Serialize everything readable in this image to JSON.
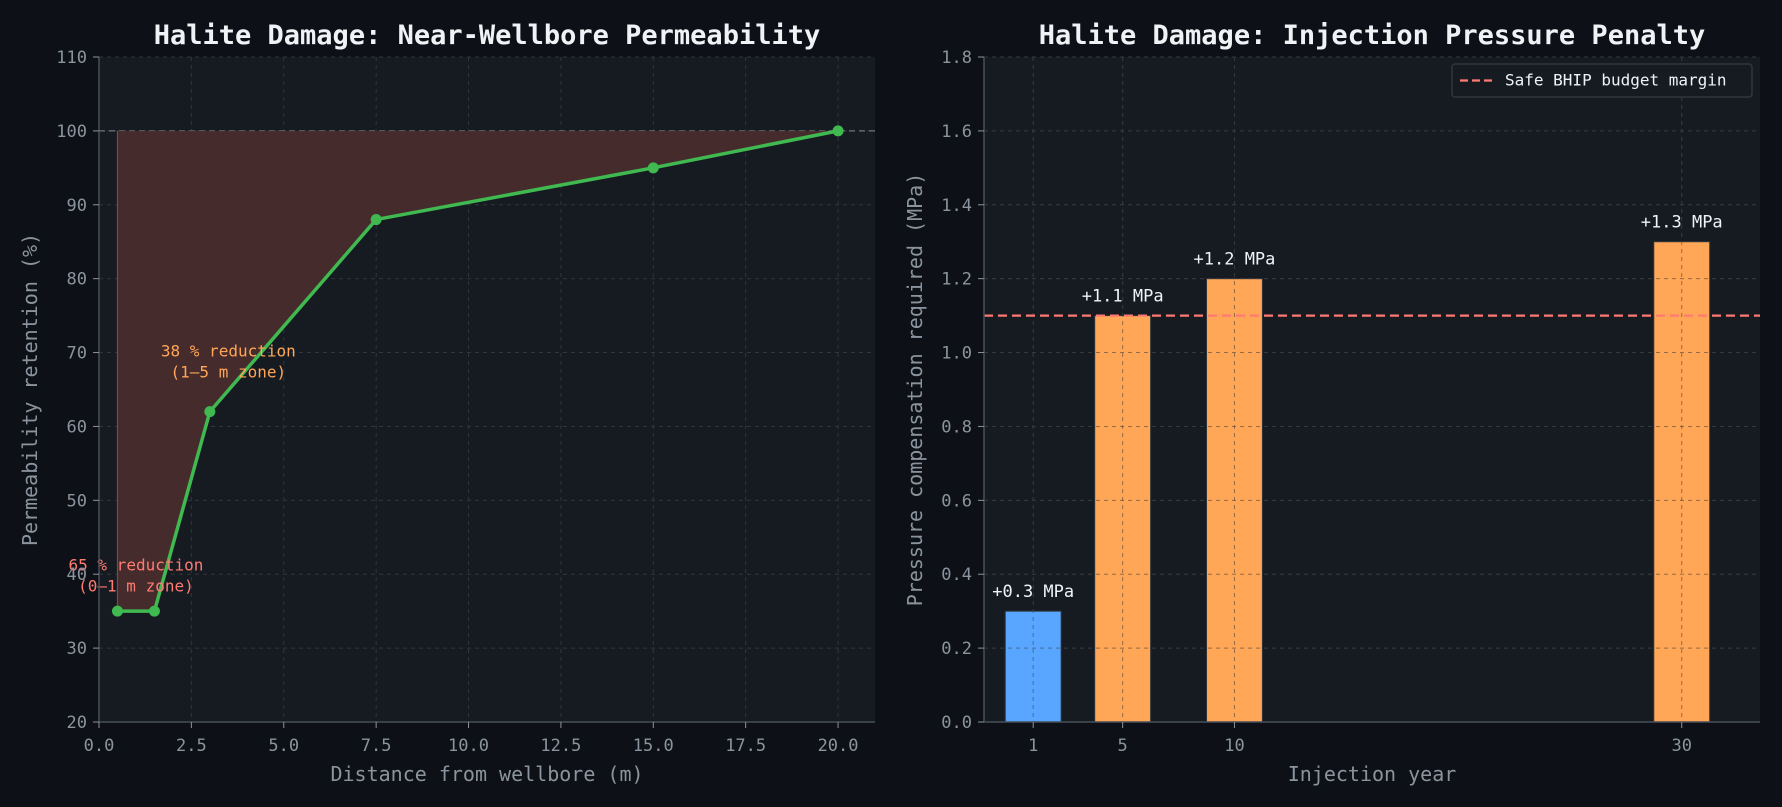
{
  "chart_data": [
    {
      "type": "line",
      "title": "Halite Damage: Near-Wellbore Permeability",
      "xlabel": "Distance from wellbore (m)",
      "ylabel": "Permeability retention (%)",
      "xlim": [
        0,
        21
      ],
      "ylim": [
        20,
        110
      ],
      "xticks": [
        0,
        2.5,
        5,
        7.5,
        10,
        12.5,
        15,
        17.5,
        20
      ],
      "xtick_labels": [
        "0.0",
        "2.5",
        "5.0",
        "7.5",
        "10.0",
        "12.5",
        "15.0",
        "17.5",
        "20.0"
      ],
      "yticks": [
        20,
        30,
        40,
        50,
        60,
        70,
        80,
        90,
        100,
        110
      ],
      "ytick_labels": [
        "20",
        "30",
        "40",
        "50",
        "60",
        "70",
        "80",
        "90",
        "100",
        "110"
      ],
      "grid": true,
      "reference_line": 100,
      "shaded_region": "between 100 % and the curve",
      "series": [
        {
          "x": [
            0.5,
            1.5,
            3,
            7.5,
            15,
            20
          ],
          "y": [
            35,
            35,
            62,
            88,
            95,
            100
          ],
          "color": "#3fb950"
        }
      ],
      "annotations": [
        {
          "lines": [
            "65 % reduction",
            "(0–1 m zone)"
          ],
          "x": 1,
          "y": 40.5,
          "color": "#ff7b72"
        },
        {
          "lines": [
            "38 % reduction",
            "(1–5 m zone)"
          ],
          "x": 3.5,
          "y": 69.5,
          "color": "#ffa657"
        }
      ],
      "colors": {
        "fill": "#4a2e2c",
        "line": "#3fb950"
      }
    },
    {
      "type": "bar",
      "title": "Halite Damage: Injection Pressure Penalty",
      "xlabel": "Injection year",
      "ylabel": "Pressure compensation required (MPa)",
      "x": [
        1,
        5,
        10,
        30
      ],
      "x_tick_labels": [
        "1",
        "5",
        "10",
        "30"
      ],
      "values": [
        0.3,
        1.1,
        1.2,
        1.3
      ],
      "value_labels": [
        "+0.3 MPa",
        "+1.1 MPa",
        "+1.2 MPa",
        "+1.3 MPa"
      ],
      "bar_colors": [
        "#58a6ff",
        "#ffa657",
        "#ffa657",
        "#ffa657"
      ],
      "xlim": [
        -1.2,
        33.5
      ],
      "ylim": [
        0,
        1.8
      ],
      "yticks": [
        0,
        0.2,
        0.4,
        0.6,
        0.8,
        1.0,
        1.2,
        1.4,
        1.6,
        1.8
      ],
      "ytick_labels": [
        "0.0",
        "0.2",
        "0.4",
        "0.6",
        "0.8",
        "1.0",
        "1.2",
        "1.4",
        "1.6",
        "1.8"
      ],
      "grid": true,
      "threshold": {
        "value": 1.1,
        "label": "Safe BHIP budget margin",
        "color": "#ff7b72"
      },
      "legend_position": "top-right"
    }
  ]
}
